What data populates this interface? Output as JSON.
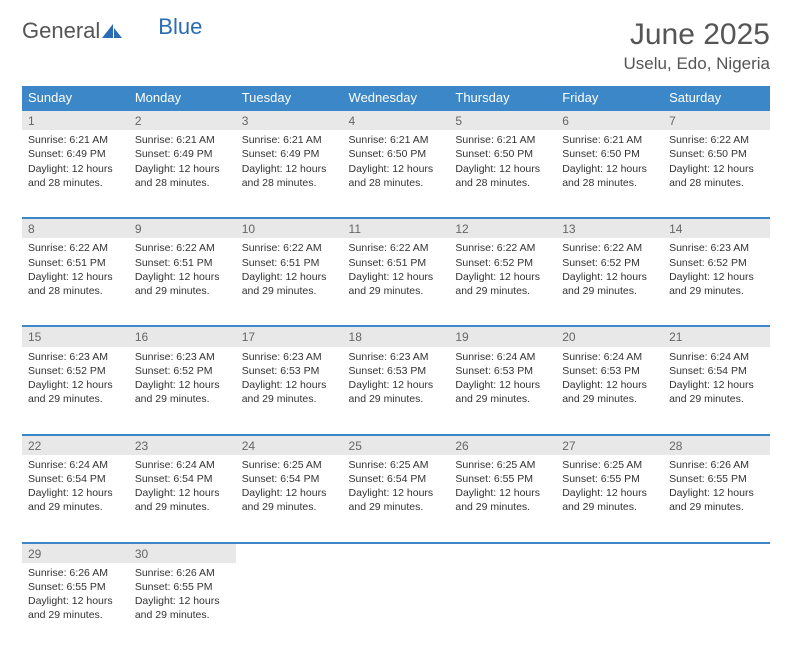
{
  "brand": {
    "part1": "General",
    "part2": "Blue",
    "color_text": "#555555",
    "color_accent": "#2a6bb3"
  },
  "title": "June 2025",
  "location": "Uselu, Edo, Nigeria",
  "theme": {
    "header_bg": "#3b87c8",
    "header_text": "#ffffff",
    "daynum_bg": "#e8e8e8",
    "daynum_text": "#666666",
    "row_border": "#3b87c8",
    "body_text": "#333333",
    "page_bg": "#ffffff",
    "cell_font_size": 10.5,
    "header_font_size": 13,
    "title_font_size": 30,
    "location_font_size": 17
  },
  "weekdays": [
    "Sunday",
    "Monday",
    "Tuesday",
    "Wednesday",
    "Thursday",
    "Friday",
    "Saturday"
  ],
  "weeks": [
    [
      {
        "day": "1",
        "sunrise": "Sunrise: 6:21 AM",
        "sunset": "Sunset: 6:49 PM",
        "dl1": "Daylight: 12 hours",
        "dl2": "and 28 minutes."
      },
      {
        "day": "2",
        "sunrise": "Sunrise: 6:21 AM",
        "sunset": "Sunset: 6:49 PM",
        "dl1": "Daylight: 12 hours",
        "dl2": "and 28 minutes."
      },
      {
        "day": "3",
        "sunrise": "Sunrise: 6:21 AM",
        "sunset": "Sunset: 6:49 PM",
        "dl1": "Daylight: 12 hours",
        "dl2": "and 28 minutes."
      },
      {
        "day": "4",
        "sunrise": "Sunrise: 6:21 AM",
        "sunset": "Sunset: 6:50 PM",
        "dl1": "Daylight: 12 hours",
        "dl2": "and 28 minutes."
      },
      {
        "day": "5",
        "sunrise": "Sunrise: 6:21 AM",
        "sunset": "Sunset: 6:50 PM",
        "dl1": "Daylight: 12 hours",
        "dl2": "and 28 minutes."
      },
      {
        "day": "6",
        "sunrise": "Sunrise: 6:21 AM",
        "sunset": "Sunset: 6:50 PM",
        "dl1": "Daylight: 12 hours",
        "dl2": "and 28 minutes."
      },
      {
        "day": "7",
        "sunrise": "Sunrise: 6:22 AM",
        "sunset": "Sunset: 6:50 PM",
        "dl1": "Daylight: 12 hours",
        "dl2": "and 28 minutes."
      }
    ],
    [
      {
        "day": "8",
        "sunrise": "Sunrise: 6:22 AM",
        "sunset": "Sunset: 6:51 PM",
        "dl1": "Daylight: 12 hours",
        "dl2": "and 28 minutes."
      },
      {
        "day": "9",
        "sunrise": "Sunrise: 6:22 AM",
        "sunset": "Sunset: 6:51 PM",
        "dl1": "Daylight: 12 hours",
        "dl2": "and 29 minutes."
      },
      {
        "day": "10",
        "sunrise": "Sunrise: 6:22 AM",
        "sunset": "Sunset: 6:51 PM",
        "dl1": "Daylight: 12 hours",
        "dl2": "and 29 minutes."
      },
      {
        "day": "11",
        "sunrise": "Sunrise: 6:22 AM",
        "sunset": "Sunset: 6:51 PM",
        "dl1": "Daylight: 12 hours",
        "dl2": "and 29 minutes."
      },
      {
        "day": "12",
        "sunrise": "Sunrise: 6:22 AM",
        "sunset": "Sunset: 6:52 PM",
        "dl1": "Daylight: 12 hours",
        "dl2": "and 29 minutes."
      },
      {
        "day": "13",
        "sunrise": "Sunrise: 6:22 AM",
        "sunset": "Sunset: 6:52 PM",
        "dl1": "Daylight: 12 hours",
        "dl2": "and 29 minutes."
      },
      {
        "day": "14",
        "sunrise": "Sunrise: 6:23 AM",
        "sunset": "Sunset: 6:52 PM",
        "dl1": "Daylight: 12 hours",
        "dl2": "and 29 minutes."
      }
    ],
    [
      {
        "day": "15",
        "sunrise": "Sunrise: 6:23 AM",
        "sunset": "Sunset: 6:52 PM",
        "dl1": "Daylight: 12 hours",
        "dl2": "and 29 minutes."
      },
      {
        "day": "16",
        "sunrise": "Sunrise: 6:23 AM",
        "sunset": "Sunset: 6:52 PM",
        "dl1": "Daylight: 12 hours",
        "dl2": "and 29 minutes."
      },
      {
        "day": "17",
        "sunrise": "Sunrise: 6:23 AM",
        "sunset": "Sunset: 6:53 PM",
        "dl1": "Daylight: 12 hours",
        "dl2": "and 29 minutes."
      },
      {
        "day": "18",
        "sunrise": "Sunrise: 6:23 AM",
        "sunset": "Sunset: 6:53 PM",
        "dl1": "Daylight: 12 hours",
        "dl2": "and 29 minutes."
      },
      {
        "day": "19",
        "sunrise": "Sunrise: 6:24 AM",
        "sunset": "Sunset: 6:53 PM",
        "dl1": "Daylight: 12 hours",
        "dl2": "and 29 minutes."
      },
      {
        "day": "20",
        "sunrise": "Sunrise: 6:24 AM",
        "sunset": "Sunset: 6:53 PM",
        "dl1": "Daylight: 12 hours",
        "dl2": "and 29 minutes."
      },
      {
        "day": "21",
        "sunrise": "Sunrise: 6:24 AM",
        "sunset": "Sunset: 6:54 PM",
        "dl1": "Daylight: 12 hours",
        "dl2": "and 29 minutes."
      }
    ],
    [
      {
        "day": "22",
        "sunrise": "Sunrise: 6:24 AM",
        "sunset": "Sunset: 6:54 PM",
        "dl1": "Daylight: 12 hours",
        "dl2": "and 29 minutes."
      },
      {
        "day": "23",
        "sunrise": "Sunrise: 6:24 AM",
        "sunset": "Sunset: 6:54 PM",
        "dl1": "Daylight: 12 hours",
        "dl2": "and 29 minutes."
      },
      {
        "day": "24",
        "sunrise": "Sunrise: 6:25 AM",
        "sunset": "Sunset: 6:54 PM",
        "dl1": "Daylight: 12 hours",
        "dl2": "and 29 minutes."
      },
      {
        "day": "25",
        "sunrise": "Sunrise: 6:25 AM",
        "sunset": "Sunset: 6:54 PM",
        "dl1": "Daylight: 12 hours",
        "dl2": "and 29 minutes."
      },
      {
        "day": "26",
        "sunrise": "Sunrise: 6:25 AM",
        "sunset": "Sunset: 6:55 PM",
        "dl1": "Daylight: 12 hours",
        "dl2": "and 29 minutes."
      },
      {
        "day": "27",
        "sunrise": "Sunrise: 6:25 AM",
        "sunset": "Sunset: 6:55 PM",
        "dl1": "Daylight: 12 hours",
        "dl2": "and 29 minutes."
      },
      {
        "day": "28",
        "sunrise": "Sunrise: 6:26 AM",
        "sunset": "Sunset: 6:55 PM",
        "dl1": "Daylight: 12 hours",
        "dl2": "and 29 minutes."
      }
    ],
    [
      {
        "day": "29",
        "sunrise": "Sunrise: 6:26 AM",
        "sunset": "Sunset: 6:55 PM",
        "dl1": "Daylight: 12 hours",
        "dl2": "and 29 minutes."
      },
      {
        "day": "30",
        "sunrise": "Sunrise: 6:26 AM",
        "sunset": "Sunset: 6:55 PM",
        "dl1": "Daylight: 12 hours",
        "dl2": "and 29 minutes."
      },
      {
        "empty": true
      },
      {
        "empty": true
      },
      {
        "empty": true
      },
      {
        "empty": true
      },
      {
        "empty": true
      }
    ]
  ]
}
